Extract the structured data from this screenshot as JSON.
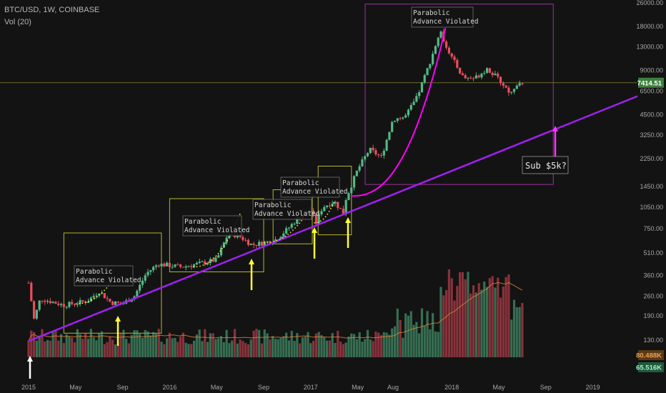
{
  "header": {
    "symbol": "BTC/USD, 1W, COINBASE",
    "indicator": "Vol (20)"
  },
  "colors": {
    "background": "#131313",
    "up": "#53b987",
    "down": "#eb4d5c",
    "trendline": "#a020f0",
    "parabola": "#ff00ff",
    "box_yellow": "#b6b62d",
    "arrow_yellow": "#ffff33",
    "arrow_magenta": "#ff33ff",
    "arrow_white": "#ffffff",
    "volume_ma": "#e0883a"
  },
  "chart_data": {
    "type": "candlestick",
    "scale": "log",
    "ylim": [
      100,
      26000
    ],
    "xlim": [
      "2015-01",
      "2019-02"
    ],
    "y_ticks": [
      "26000.00",
      "18000.00",
      "13000.00",
      "9000.00",
      "6500.00",
      "4500.00",
      "3250.00",
      "2250.00",
      "1450.00",
      "1050.00",
      "750.00",
      "510.00",
      "360.00",
      "260.00",
      "190.00",
      "130.00"
    ],
    "x_ticks": [
      "2015",
      "May",
      "Sep",
      "2016",
      "May",
      "Sep",
      "2017",
      "May",
      "Aug",
      "2018",
      "May",
      "Sep",
      "2019"
    ],
    "price_anchors": [
      [
        "2015-01",
        320
      ],
      [
        "2015-01-15",
        180
      ],
      [
        "2015-02",
        250
      ],
      [
        "2015-04",
        225
      ],
      [
        "2015-06",
        240
      ],
      [
        "2015-07",
        280
      ],
      [
        "2015-08",
        235
      ],
      [
        "2015-09",
        230
      ],
      [
        "2015-10",
        260
      ],
      [
        "2015-11",
        370
      ],
      [
        "2015-12",
        430
      ],
      [
        "2016-01",
        420
      ],
      [
        "2016-02",
        410
      ],
      [
        "2016-04",
        440
      ],
      [
        "2016-05",
        460
      ],
      [
        "2016-06",
        700
      ],
      [
        "2016-07",
        660
      ],
      [
        "2016-08",
        580
      ],
      [
        "2016-09",
        600
      ],
      [
        "2016-10",
        630
      ],
      [
        "2016-11",
        740
      ],
      [
        "2016-12",
        900
      ],
      [
        "2017-01",
        1000
      ],
      [
        "2017-01-15",
        820
      ],
      [
        "2017-02",
        1050
      ],
      [
        "2017-03",
        1150
      ],
      [
        "2017-03-25",
        950
      ],
      [
        "2017-04",
        1200
      ],
      [
        "2017-05",
        1900
      ],
      [
        "2017-06",
        2600
      ],
      [
        "2017-07",
        2300
      ],
      [
        "2017-08",
        4200
      ],
      [
        "2017-09",
        4300
      ],
      [
        "2017-10",
        5800
      ],
      [
        "2017-11",
        9500
      ],
      [
        "2017-12",
        16500
      ],
      [
        "2018-01",
        11000
      ],
      [
        "2018-02",
        8000
      ],
      [
        "2018-03",
        8000
      ],
      [
        "2018-04",
        9300
      ],
      [
        "2018-05",
        7800
      ],
      [
        "2018-06",
        6300
      ],
      [
        "2018-07",
        7414.51
      ]
    ],
    "volume_labels": [
      "80.488K",
      "65.516K"
    ],
    "last_price": "7414.51",
    "annotations": [
      {
        "text": [
          "Parabolic",
          "Advance Violated"
        ]
      },
      {
        "text": [
          "Parabolic",
          "Advance Violated"
        ]
      },
      {
        "text": [
          "Parabolic",
          "Advance Violated"
        ]
      },
      {
        "text": [
          "Parabolic",
          "Advance Violated"
        ]
      },
      {
        "text": [
          "Parabolic",
          "Advance Violated"
        ]
      },
      {
        "text": [
          "Sub $5k?"
        ]
      }
    ]
  }
}
